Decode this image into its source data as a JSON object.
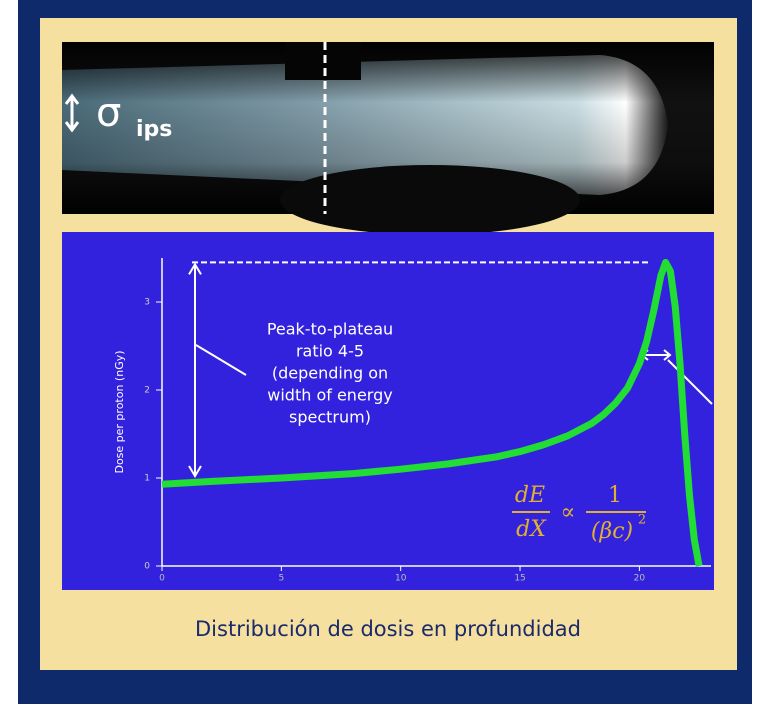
{
  "photo": {
    "sigma_label": "σ",
    "sigma_subscript": "ips"
  },
  "chart_data": {
    "type": "line",
    "y_label": "Dose per proton (nGy)",
    "x": [
      0,
      2,
      5,
      8,
      10,
      12,
      14,
      15,
      16,
      17,
      18,
      18.5,
      19,
      19.5,
      20,
      20.3,
      20.6,
      20.9,
      21.1,
      21.3,
      21.5,
      21.7,
      21.9,
      22.1,
      22.3,
      22.5
    ],
    "values": [
      0.93,
      0.96,
      1.0,
      1.05,
      1.1,
      1.16,
      1.24,
      1.3,
      1.38,
      1.48,
      1.62,
      1.72,
      1.85,
      2.02,
      2.3,
      2.55,
      2.9,
      3.3,
      3.45,
      3.35,
      2.95,
      2.3,
      1.5,
      0.8,
      0.3,
      0
    ],
    "color": "#22dd33",
    "xlim": [
      0,
      23
    ],
    "xticks": [
      0,
      5,
      10,
      15,
      20
    ],
    "ylim": [
      0,
      3.5
    ],
    "yticks": [
      0,
      1,
      2,
      3
    ],
    "annotations": [
      {
        "text_lines": [
          "Peak-to-plateau",
          "ratio 4-5",
          "(depending on",
          "width of energy",
          "spectrum)"
        ]
      }
    ],
    "formula": {
      "num_left": "dE",
      "den_left": "dX",
      "operator": "∝",
      "num_right": "1",
      "den_right": "(βc)",
      "exponent": "2"
    }
  },
  "caption": "Distribución de dosis en profundidad"
}
